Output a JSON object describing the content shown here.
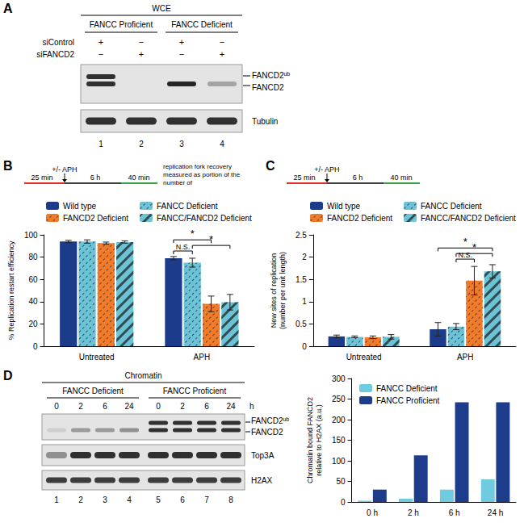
{
  "panels": [
    "A",
    "B",
    "C",
    "D"
  ],
  "blots": {
    "A": {
      "header": "WCE",
      "groups": [
        "FANCC Proficient",
        "FANCC Deficient"
      ],
      "rows": [
        {
          "label": "siControl",
          "signs": [
            "+",
            "−",
            "+",
            "−"
          ]
        },
        {
          "label": "siFANCD2",
          "signs": [
            "−",
            "+",
            "−",
            "+"
          ]
        }
      ],
      "bands": [
        {
          "base": "FANCD2",
          "sup": "ub"
        },
        {
          "base": "FANCD2",
          "sup": ""
        },
        {
          "base": "Tubulin",
          "sup": ""
        }
      ],
      "lanes": [
        "1",
        "2",
        "3",
        "4"
      ]
    },
    "D": {
      "header": "Chromatin",
      "groups": [
        "FANCC Deficient",
        "FANCC Proficient"
      ],
      "times": [
        "0",
        "2",
        "6",
        "24",
        "0",
        "2",
        "6",
        "24"
      ],
      "time_unit": "h",
      "bands": [
        {
          "base": "FANCD2",
          "sup": "ub"
        },
        {
          "base": "FANCD2",
          "sup": ""
        },
        {
          "base": "Top3A",
          "sup": ""
        },
        {
          "base": "H2AX",
          "sup": ""
        }
      ],
      "lanes": [
        "1",
        "2",
        "3",
        "4",
        "5",
        "6",
        "7",
        "8"
      ]
    }
  },
  "chart_data": [
    {
      "type": "bar",
      "ylabel": "% Replication restart efficiency",
      "categories": [
        "Untreated",
        "APH"
      ],
      "series": [
        {
          "name": "Wild type",
          "color": "#1c3b8a",
          "values": [
            94,
            79
          ],
          "errors": [
            1,
            1.5
          ]
        },
        {
          "name": "FANCC Deficient",
          "color": "#6cc3d5",
          "values": [
            94,
            75
          ],
          "errors": [
            1.5,
            4
          ]
        },
        {
          "name": "FANCD2 Deficient",
          "color": "#f07b2b",
          "values": [
            92.5,
            38
          ],
          "errors": [
            1,
            7
          ]
        },
        {
          "name": "FANCC/FANCD2 Deficient",
          "color": "#6cc3d5",
          "values": [
            93.5,
            39.5
          ],
          "errors": [
            1,
            7
          ]
        }
      ],
      "ylim": [
        0,
        100
      ],
      "yticks": [
        0,
        20,
        40,
        60,
        80,
        100
      ],
      "grid": false,
      "legend": "top",
      "annotations": [
        {
          "text": "N.S.",
          "category": "APH",
          "from": "Wild type",
          "to": "FANCC Deficient"
        },
        {
          "text": "*",
          "category": "APH",
          "from": "FANCC Deficient",
          "to": "FANCC/FANCD2 Deficient"
        },
        {
          "text": "*",
          "category": "APH",
          "from": "Wild type",
          "to": "FANCD2 Deficient"
        }
      ],
      "schematic": {
        "first": "25 min",
        "treatment": "+/- APH",
        "chase": "6 h",
        "second": "40 min",
        "note": "replication fork recovery measured as portion of the number of"
      }
    },
    {
      "type": "bar",
      "ylabel": "New sites of replication\n(number per unit length)",
      "categories": [
        "Untreated",
        "APH"
      ],
      "series": [
        {
          "name": "Wild type",
          "color": "#1c3b8a",
          "values": [
            0.22,
            0.38
          ],
          "errors": [
            0.03,
            0.15
          ]
        },
        {
          "name": "FANCC Deficient",
          "color": "#6cc3d5",
          "values": [
            0.21,
            0.44
          ],
          "errors": [
            0.02,
            0.07
          ]
        },
        {
          "name": "FANCD2 Deficient",
          "color": "#f07b2b",
          "values": [
            0.2,
            1.47
          ],
          "errors": [
            0.03,
            0.32
          ]
        },
        {
          "name": "FANCC/FANCD2 Deficient",
          "color": "#6cc3d5",
          "values": [
            0.21,
            1.68
          ],
          "errors": [
            0.05,
            0.15
          ]
        }
      ],
      "ylim": [
        0,
        2.5
      ],
      "yticks": [
        0,
        0.5,
        1,
        1.5,
        2,
        2.5
      ],
      "grid": false,
      "legend": "top",
      "annotations": [
        {
          "text": "N.S.",
          "category": "APH",
          "from": "FANCC Deficient",
          "to": "FANCD2 Deficient"
        },
        {
          "text": "*",
          "category": "APH",
          "from": "FANCC Deficient",
          "to": "FANCC/FANCD2 Deficient"
        },
        {
          "text": "*",
          "category": "APH",
          "from": "Wild type",
          "to": "FANCC/FANCD2 Deficient"
        }
      ],
      "schematic": {
        "first": "25 min",
        "treatment": "+/- APH",
        "chase": "6 h",
        "second": "40 min"
      }
    },
    {
      "type": "bar",
      "ylabel": "Chromatin bound FANCD2\nrelative to H2AX (a.u.)",
      "categories": [
        "0 h",
        "2 h",
        "6 h",
        "24 h"
      ],
      "series": [
        {
          "name": "FANCC Deficient",
          "color": "#6ecbe0",
          "values": [
            3,
            8,
            30,
            55
          ]
        },
        {
          "name": "FANCC Proficient",
          "color": "#1e3c8c",
          "values": [
            30,
            113,
            242,
            242
          ]
        }
      ],
      "ylim": [
        0,
        300
      ],
      "yticks": [
        0,
        50,
        100,
        150,
        200,
        250,
        300
      ],
      "grid": false,
      "legend": "upper left"
    }
  ]
}
